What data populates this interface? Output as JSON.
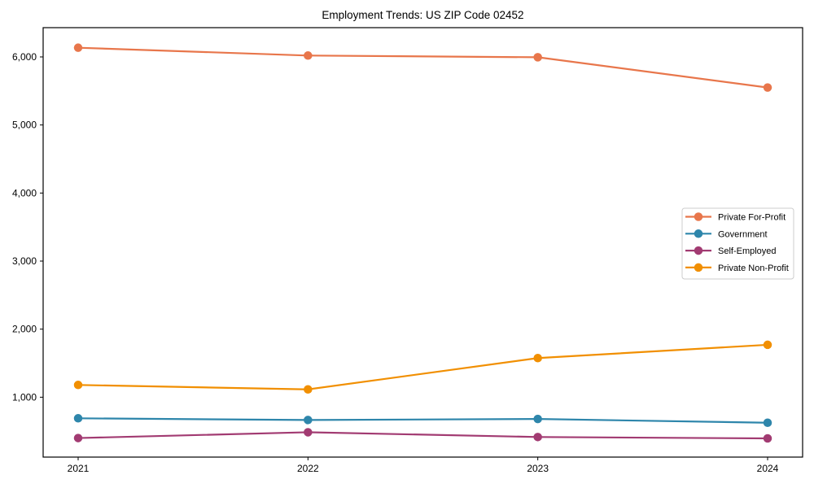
{
  "chart_data": {
    "type": "line",
    "title": "Employment Trends: US ZIP Code 02452",
    "xlabel": "",
    "ylabel": "",
    "x": [
      2021,
      2022,
      2023,
      2024
    ],
    "x_tick_labels": [
      "2021",
      "2022",
      "2023",
      "2024"
    ],
    "y_ticks": [
      1000,
      2000,
      3000,
      4000,
      5000,
      6000
    ],
    "y_tick_labels": [
      "1,000",
      "2,000",
      "3,000",
      "4,000",
      "5,000",
      "6,000"
    ],
    "ylim": [
      120,
      6430
    ],
    "grid": false,
    "legend_position": "center right",
    "marker": "circle",
    "series": [
      {
        "name": "Private For-Profit",
        "color": "#E8764B",
        "values": [
          6135,
          6020,
          5995,
          5550
        ]
      },
      {
        "name": "Government",
        "color": "#2E86AB",
        "values": [
          690,
          665,
          680,
          625
        ]
      },
      {
        "name": "Self-Employed",
        "color": "#A23B72",
        "values": [
          400,
          485,
          415,
          395
        ]
      },
      {
        "name": "Private Non-Profit",
        "color": "#F18F01",
        "values": [
          1180,
          1115,
          1575,
          1770
        ]
      }
    ]
  }
}
